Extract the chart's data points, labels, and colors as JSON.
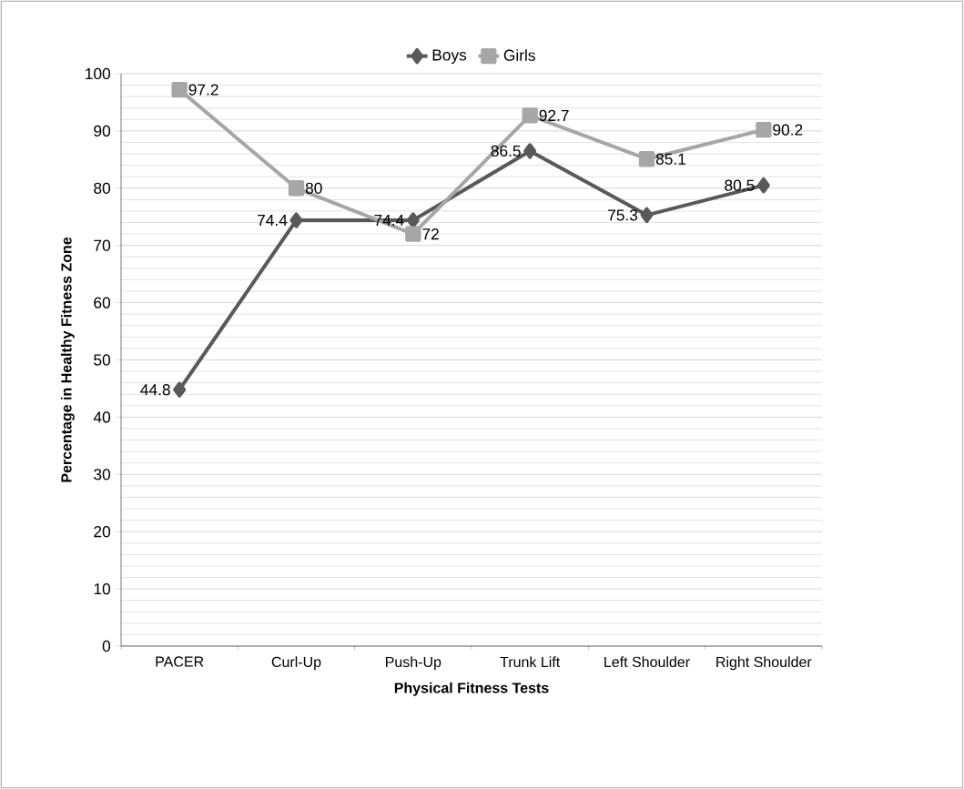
{
  "chart_data": {
    "type": "line",
    "xlabel": "Physical Fitness Tests",
    "ylabel": "Percentage in Healthy Fitness Zone",
    "categories": [
      "PACER",
      "Curl-Up",
      "Push-Up",
      "Trunk Lift",
      "Left Shoulder",
      "Right Shoulder"
    ],
    "series": [
      {
        "name": "Boys",
        "color": "#595959",
        "marker": "diamond",
        "values": [
          44.8,
          74.4,
          74.4,
          86.5,
          75.3,
          80.5
        ]
      },
      {
        "name": "Girls",
        "color": "#a6a6a6",
        "marker": "square",
        "values": [
          97.2,
          80,
          72,
          92.7,
          85.1,
          90.2
        ]
      }
    ],
    "ylim": [
      0,
      100
    ],
    "yticks": [
      0,
      10,
      20,
      30,
      40,
      50,
      60,
      70,
      80,
      90,
      100
    ],
    "grid": "y",
    "legend": "top",
    "data_labels": true,
    "line_style": "solid"
  }
}
